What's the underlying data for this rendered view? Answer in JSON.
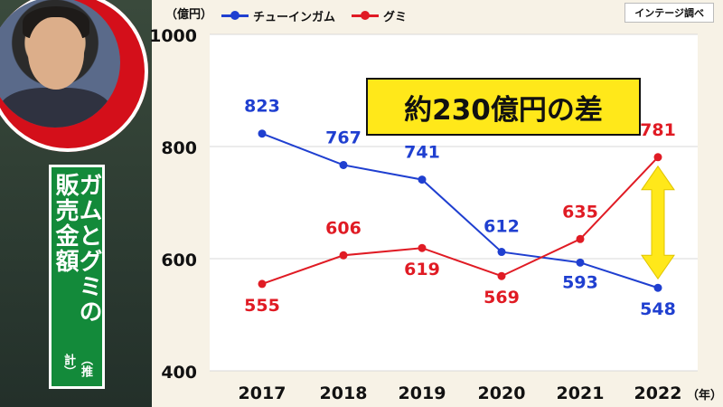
{
  "source": "インテージ調べ",
  "callout": "約230億円の差",
  "side_title": "ガムとグミの販売金額",
  "side_sub": "（推計）",
  "chart_data": {
    "type": "line",
    "title": "",
    "xlabel": "（年）",
    "ylabel": "（億円）",
    "ylim": [
      400,
      1000
    ],
    "yticks": [
      400,
      600,
      800,
      1000
    ],
    "categories": [
      "2017",
      "2018",
      "2019",
      "2020",
      "2021",
      "2022"
    ],
    "series": [
      {
        "name": "チューインガム",
        "color": "#1f3fd0",
        "values": [
          823,
          767,
          741,
          612,
          593,
          548
        ]
      },
      {
        "name": "グミ",
        "color": "#e01b24",
        "values": [
          555,
          606,
          619,
          569,
          635,
          781
        ]
      }
    ],
    "grid": true,
    "legend": "top"
  }
}
